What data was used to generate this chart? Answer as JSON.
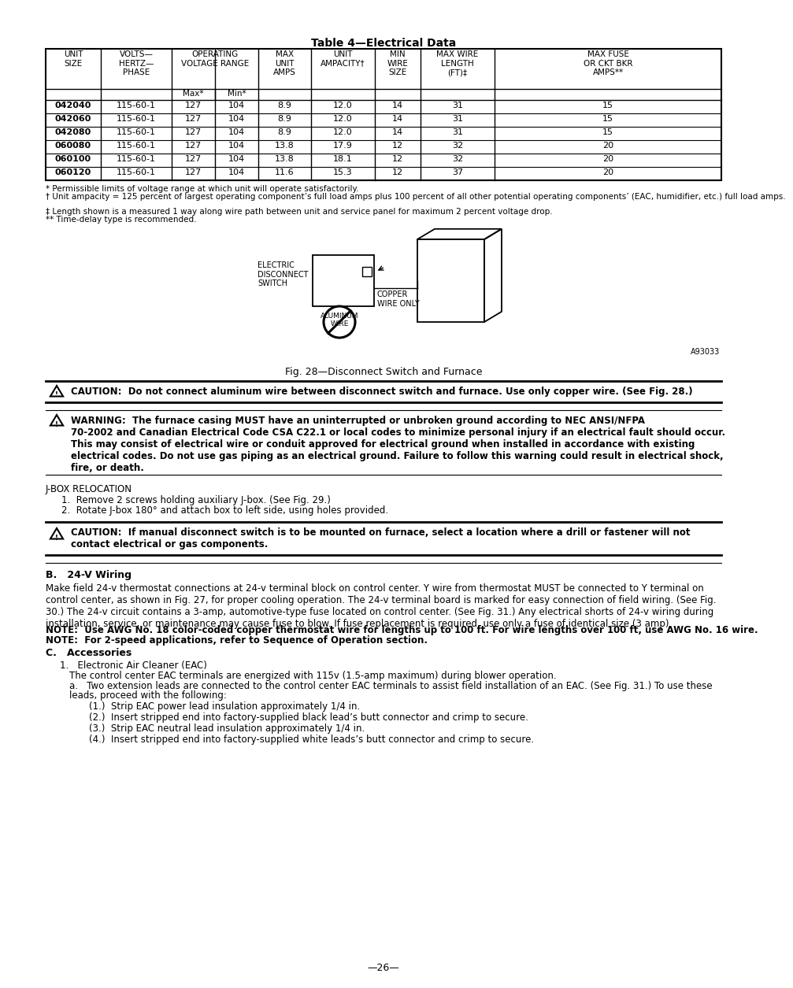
{
  "title": "Table 4—Electrical Data",
  "table_data": [
    [
      "042040",
      "115-60-1",
      "127",
      "104",
      "8.9",
      "12.0",
      "14",
      "31",
      "15"
    ],
    [
      "042060",
      "115-60-1",
      "127",
      "104",
      "8.9",
      "12.0",
      "14",
      "31",
      "15"
    ],
    [
      "042080",
      "115-60-1",
      "127",
      "104",
      "8.9",
      "12.0",
      "14",
      "31",
      "15"
    ],
    [
      "060080",
      "115-60-1",
      "127",
      "104",
      "13.8",
      "17.9",
      "12",
      "32",
      "20"
    ],
    [
      "060100",
      "115-60-1",
      "127",
      "104",
      "13.8",
      "18.1",
      "12",
      "32",
      "20"
    ],
    [
      "060120",
      "115-60-1",
      "127",
      "104",
      "11.6",
      "15.3",
      "12",
      "37",
      "20"
    ]
  ],
  "footnote1": "* Permissible limits of voltage range at which unit will operate satisfactorily.",
  "footnote2": "† Unit ampacity = 125 percent of largest operating component’s full load amps plus 100 percent of all other potential operating components’ (EAC, humidifier, etc.) full load amps.",
  "footnote3": "‡ Length shown is a measured 1 way along wire path between unit and service panel for maximum 2 percent voltage drop.",
  "footnote4": "** Time-delay type is recommended.",
  "fig_caption": "Fig. 28—Disconnect Switch and Furnace",
  "fig_label": "A93033",
  "caution1_text": "CAUTION:  Do not connect aluminum wire between disconnect switch and furnace. Use only copper wire. (See Fig. 28.)",
  "warning_line1": "WARNING:  The furnace casing MUST have an uninterrupted or unbroken ground according to NEC ANSI/NFPA",
  "warning_line2": "70-2002 and Canadian Electrical Code CSA C22.1 or local codes to minimize personal injury if an electrical fault should occur.",
  "warning_line3": "This may consist of electrical wire or conduit approved for electrical ground when installed in accordance with existing",
  "warning_line4": "electrical codes. Do not use gas piping as an electrical ground. Failure to follow this warning could result in electrical shock,",
  "warning_line5": "fire, or death.",
  "jbox_title": "J-BOX RELOCATION",
  "jbox_item1": "Remove 2 screws holding auxiliary J-box. (See Fig. 29.)",
  "jbox_item2": "Rotate J-box 180° and attach box to left side, using holes provided.",
  "caution2_line1": "CAUTION:  If manual disconnect switch is to be mounted on furnace, select a location where a drill or fastener will not",
  "caution2_line2": "contact electrical or gas components.",
  "sec_b_title": "B.   24-V Wiring",
  "sec_b_line1": "Make field 24-v thermostat connections at 24-v terminal block on control center. Y wire from thermostat MUST be connected to Y terminal on",
  "sec_b_line2": "control center, as shown in Fig. 27, for proper cooling operation. The 24-v terminal board is marked for easy connection of field wiring. (See Fig.",
  "sec_b_line3": "30.) The 24-v circuit contains a 3-amp, automotive-type fuse located on control center. (See Fig. 31.) Any electrical shorts of 24-v wiring during",
  "sec_b_line4": "installation, service, or maintenance may cause fuse to blow. If fuse replacement is required, use only a fuse of identical size (3 amp).",
  "note1": "NOTE:  Use AWG No. 18 color-coded copper thermostat wire for lengths up to 100 ft. For wire lengths over 100 ft, use AWG No. 16 wire.",
  "note2": "NOTE:  For 2-speed applications, refer to Sequence of Operation section.",
  "sec_c_title": "C.   Accessories",
  "acc1_title": "1.   Electronic Air Cleaner (EAC)",
  "acc1_sub": "The control center EAC terminals are energized with 115v (1.5-amp maximum) during blower operation.",
  "acc1a_line1": "a.   Two extension leads are connected to the control center EAC terminals to assist field installation of an EAC. (See Fig. 31.) To use these",
  "acc1a_line2": "leads, proceed with the following:",
  "acc1a_1": "(1.)  Strip EAC power lead insulation approximately 1/4 in.",
  "acc1a_2": "(2.)  Insert stripped end into factory-supplied black lead’s butt connector and crimp to secure.",
  "acc1a_3": "(3.)  Strip EAC neutral lead insulation approximately 1/4 in.",
  "acc1a_4": "(4.)  Insert stripped end into factory-supplied white leads’s butt connector and crimp to secure.",
  "page_num": "—26—"
}
